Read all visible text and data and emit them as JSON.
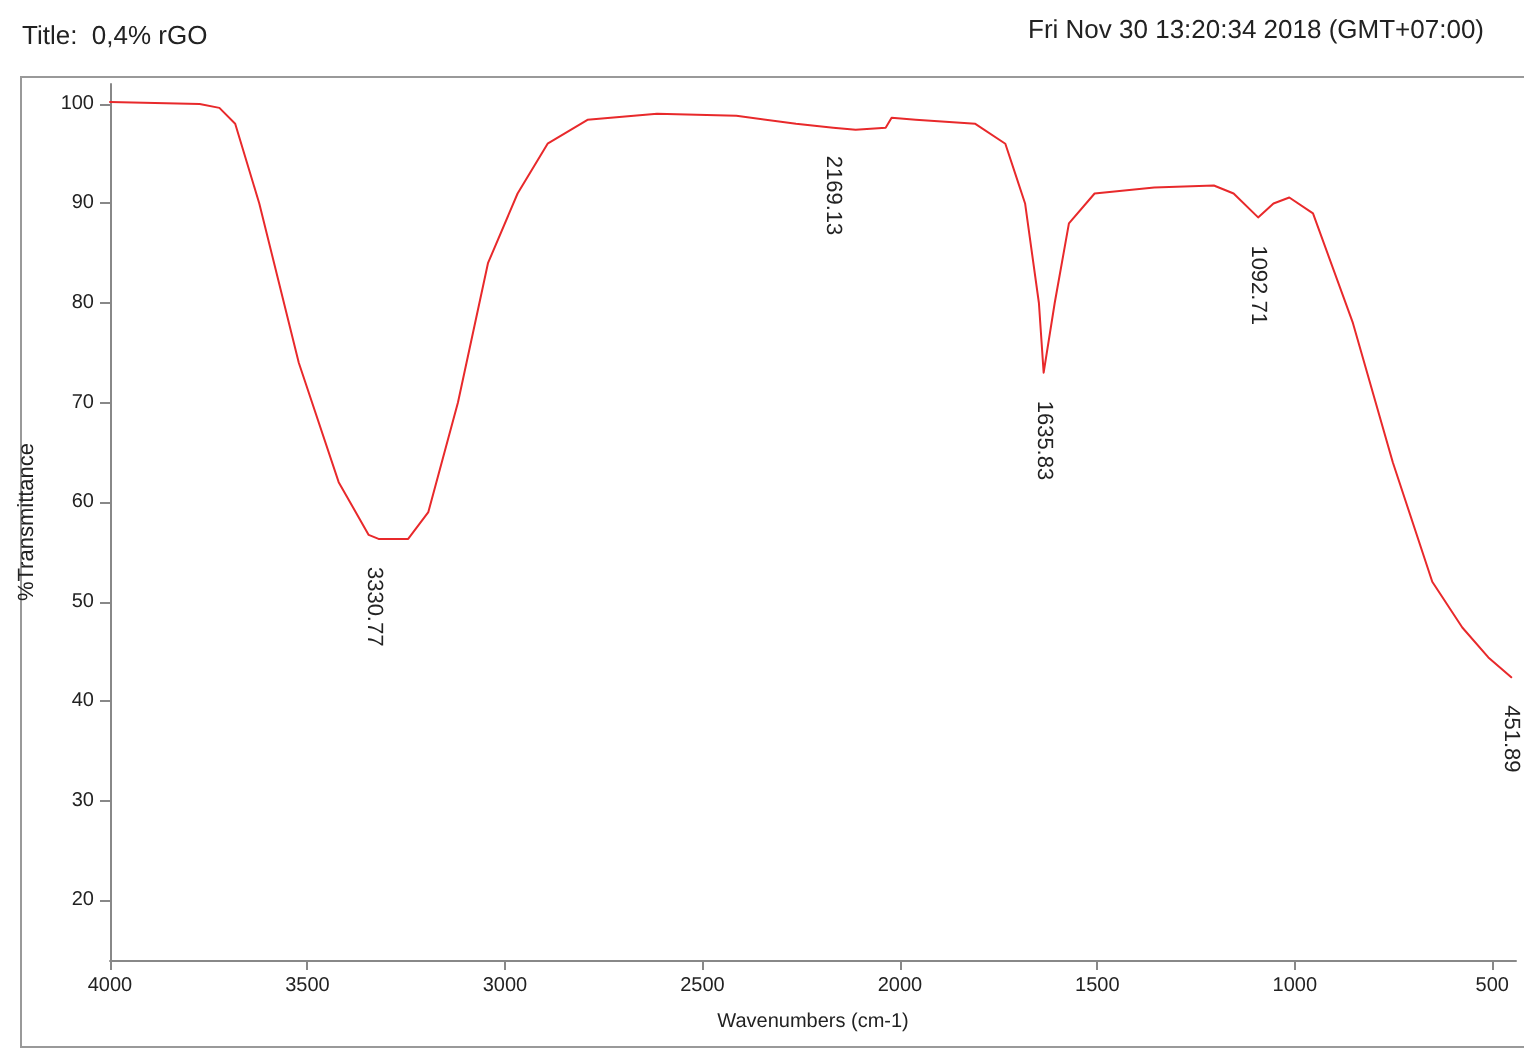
{
  "chart_data": {
    "type": "line",
    "title": "Title:  0,4% rGO",
    "xlabel": "Wavenumbers (cm-1)",
    "ylabel": "%Transmittance",
    "annotations": [
      "Fri Nov 30 13:20:34 2018 (GMT+07:00)",
      {
        "text": "3330.77",
        "x": 3330.77,
        "y": 56.3
      },
      {
        "text": "2169.13",
        "x": 2169.13,
        "y": 97.6
      },
      {
        "text": "1635.83",
        "x": 1635.83,
        "y": 73
      },
      {
        "text": "1092.71",
        "x": 1092.71,
        "y": 88.6
      },
      {
        "text": "451.89",
        "x": 451.89,
        "y": 42.4
      }
    ],
    "series": [
      {
        "color": "#e8292b",
        "x": [
          4000,
          3773,
          3723,
          3683,
          3622,
          3522,
          3421,
          3345,
          3320,
          3245,
          3194,
          3119,
          3043,
          2968,
          2892,
          2791,
          2615,
          2414,
          2263,
          2169,
          2112,
          2036,
          2021,
          1960,
          1809,
          1733,
          1683,
          1648,
          1636,
          1608,
          1572,
          1507,
          1356,
          1205,
          1155,
          1093,
          1054,
          1014,
          954,
          853,
          752,
          652,
          576,
          510,
          452
        ],
        "values": [
          100.2,
          100,
          99.6,
          98,
          90,
          74,
          62,
          56.7,
          56.3,
          56.3,
          59,
          70,
          84,
          91,
          96,
          98.4,
          99,
          98.8,
          98,
          97.6,
          97.4,
          97.6,
          98.6,
          98.4,
          98,
          96,
          90,
          80,
          73,
          80,
          88,
          91,
          91.6,
          91.8,
          91,
          88.6,
          90,
          90.6,
          89,
          78,
          64,
          52,
          47.4,
          44.4,
          42.4
        ]
      }
    ],
    "xlim": [
      4000,
      440
    ],
    "ylim": [
      14,
      102
    ],
    "xticks": [
      4000,
      3500,
      3000,
      2500,
      2000,
      1500,
      1000,
      500
    ],
    "yticks": [
      20,
      30,
      40,
      50,
      60,
      70,
      80,
      90,
      100
    ],
    "grid": false,
    "marker": "none",
    "line_style": "solid"
  }
}
